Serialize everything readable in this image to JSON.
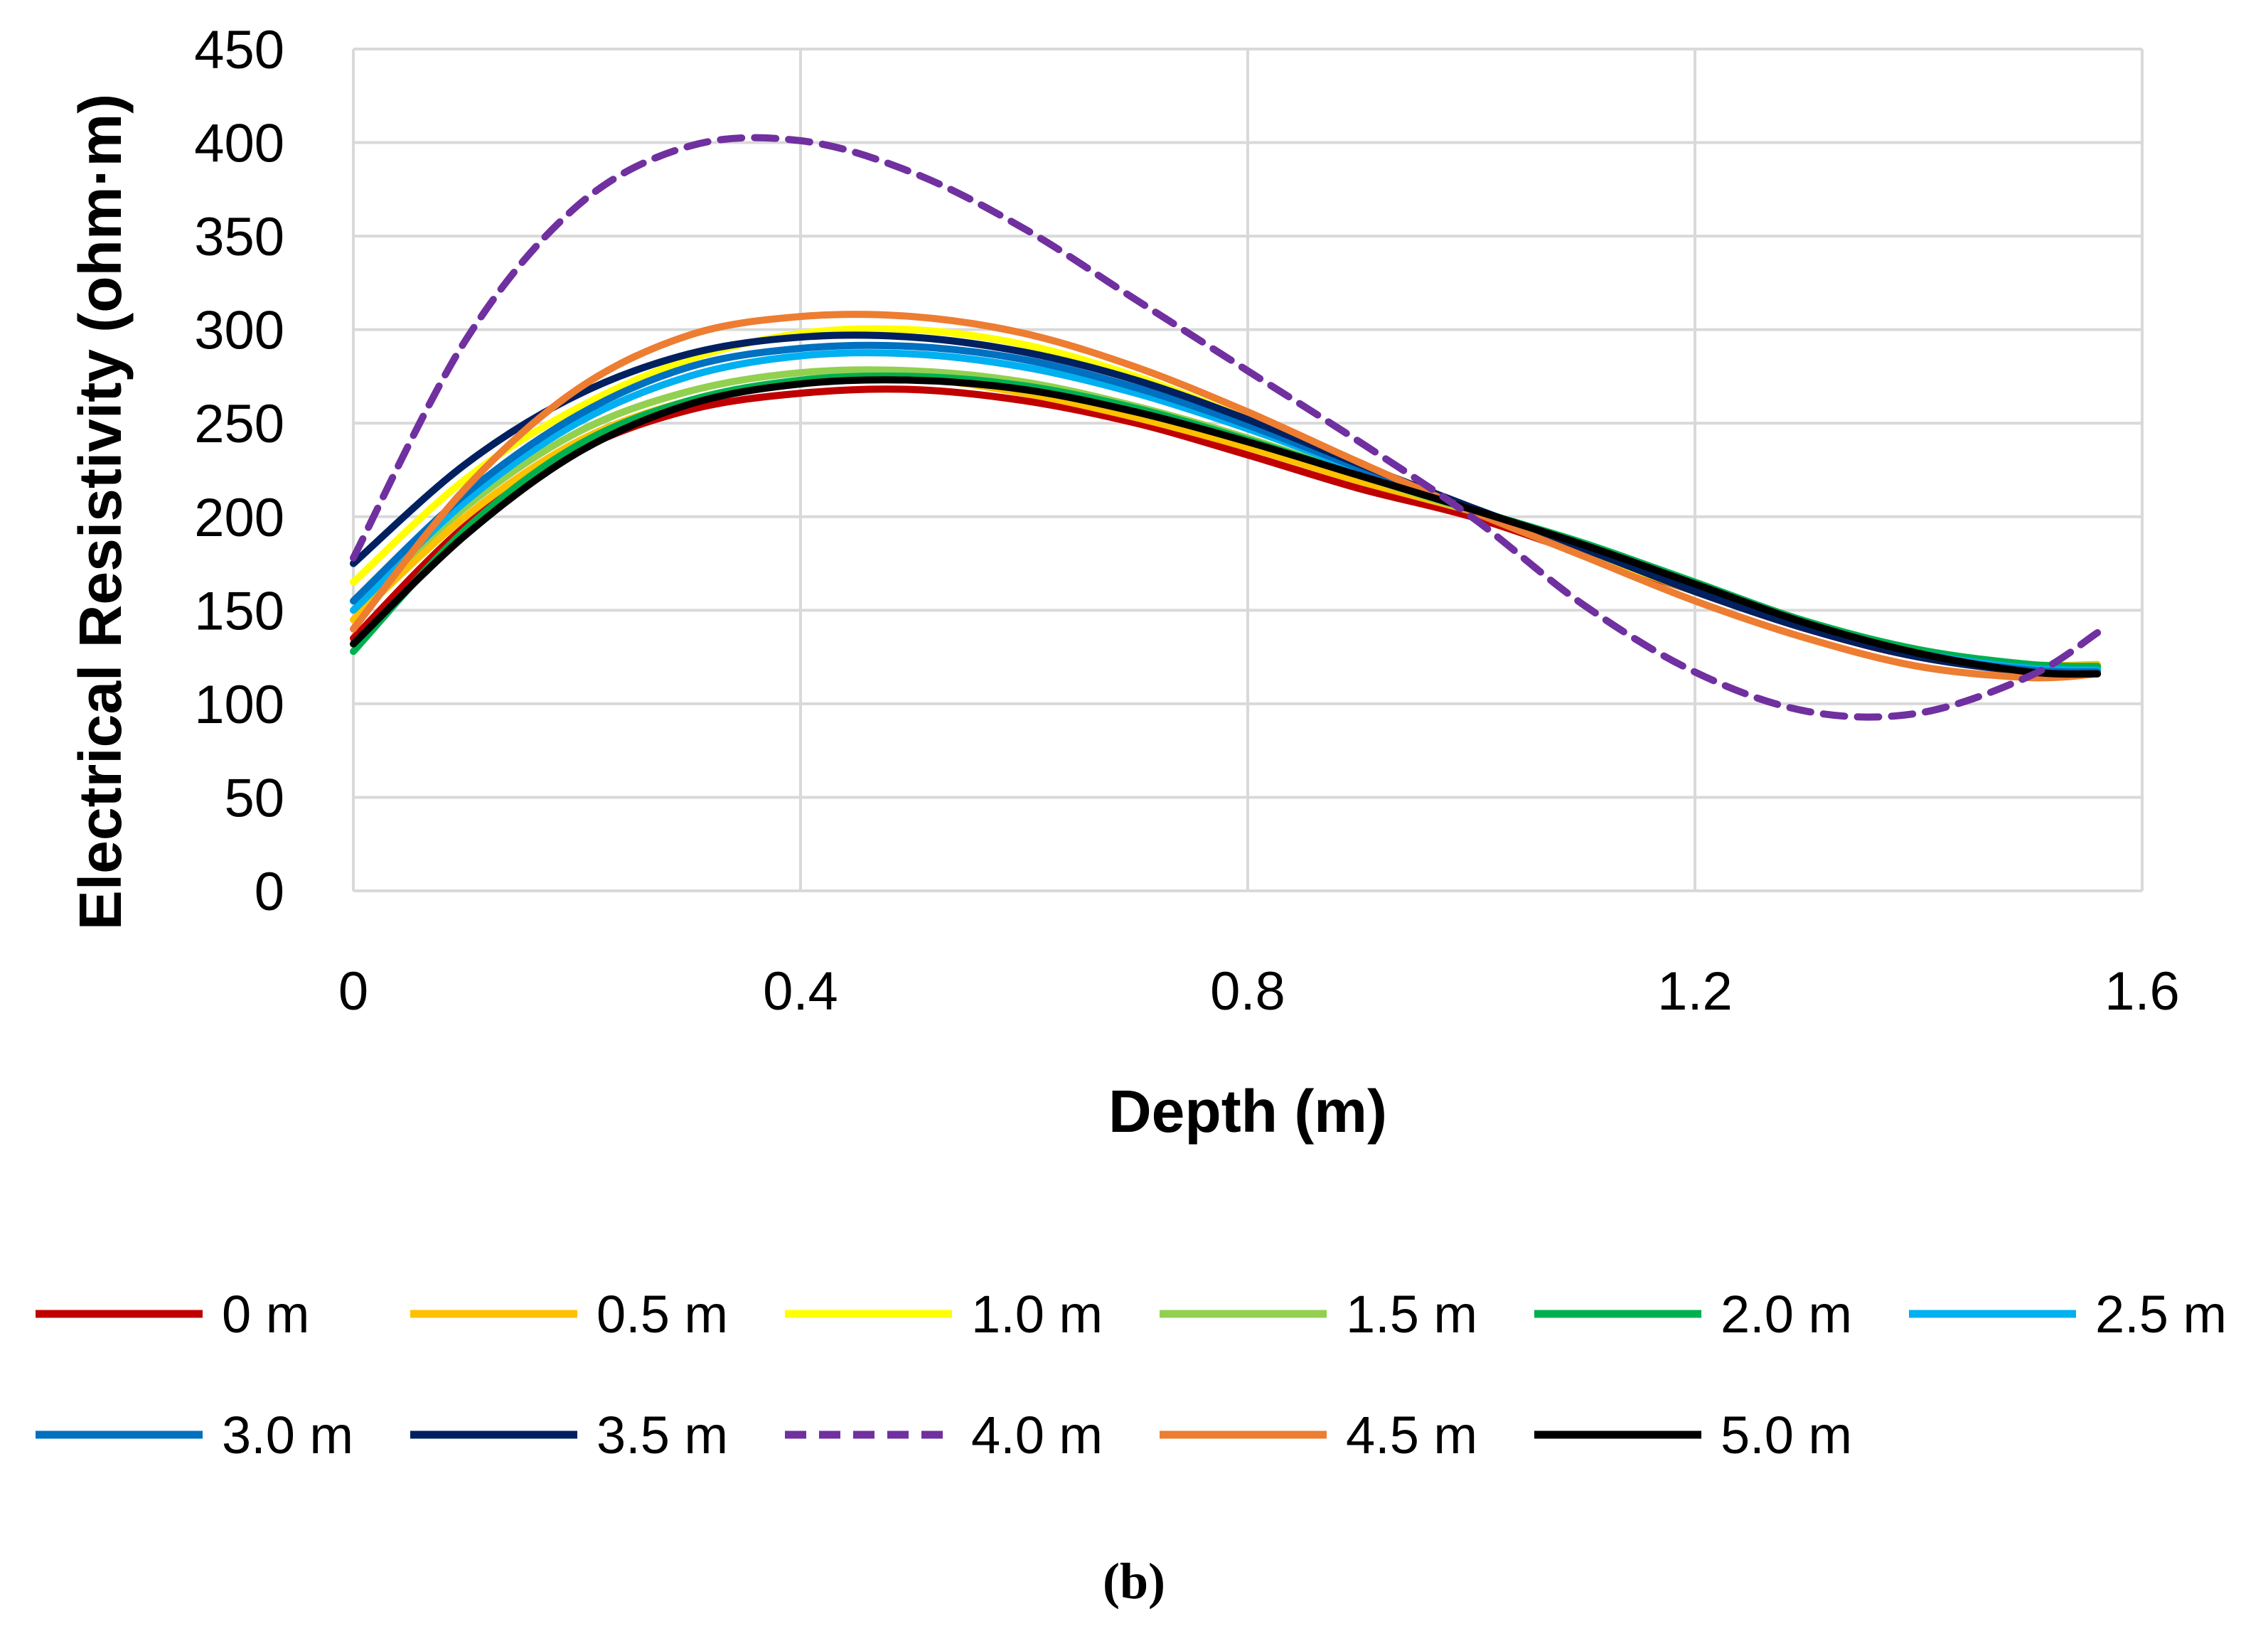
{
  "chart_data": {
    "type": "line",
    "title": "",
    "xlabel": "Depth (m)",
    "ylabel": "Electrical Resistivity (ohm·m)",
    "xlim": [
      0,
      1.6
    ],
    "ylim": [
      0,
      450
    ],
    "xticks": [
      "0",
      "0.4",
      "0.8",
      "1.2",
      "1.6"
    ],
    "yticks": [
      "0",
      "50",
      "100",
      "150",
      "200",
      "250",
      "300",
      "350",
      "400",
      "450"
    ],
    "grid": true,
    "legend_position": "bottom",
    "caption": "(b)",
    "x": [
      0,
      0.1,
      0.2,
      0.3,
      0.4,
      0.5,
      0.6,
      0.7,
      0.8,
      0.9,
      1.0,
      1.1,
      1.2,
      1.3,
      1.4,
      1.5,
      1.56
    ],
    "series": [
      {
        "name": "0 m",
        "color": "#C00000",
        "dashed": false,
        "values": [
          135,
          195,
          235,
          257,
          266,
          268,
          262,
          250,
          233,
          215,
          200,
          180,
          160,
          140,
          125,
          118,
          119
        ]
      },
      {
        "name": "0.5 m",
        "color": "#FFC000",
        "dashed": false,
        "values": [
          145,
          200,
          240,
          262,
          272,
          274,
          266,
          253,
          237,
          219,
          203,
          185,
          163,
          142,
          128,
          121,
          121
        ]
      },
      {
        "name": "1.0 m",
        "color": "#FFFF00",
        "dashed": false,
        "values": [
          165,
          220,
          258,
          284,
          298,
          300,
          292,
          275,
          252,
          226,
          203,
          182,
          160,
          141,
          127,
          120,
          120
        ]
      },
      {
        "name": "1.5 m",
        "color": "#92D050",
        "dashed": false,
        "values": [
          150,
          205,
          245,
          267,
          277,
          278,
          272,
          259,
          242,
          222,
          203,
          185,
          164,
          143,
          128,
          120,
          119
        ]
      },
      {
        "name": "2.0 m",
        "color": "#00B050",
        "dashed": false,
        "values": [
          128,
          193,
          238,
          262,
          273,
          275,
          270,
          258,
          241,
          222,
          204,
          186,
          165,
          144,
          129,
          121,
          120
        ]
      },
      {
        "name": "2.5 m",
        "color": "#00B0F0",
        "dashed": false,
        "values": [
          150,
          208,
          250,
          275,
          286,
          287,
          280,
          266,
          247,
          225,
          204,
          184,
          162,
          142,
          127,
          119,
          118
        ]
      },
      {
        "name": "3.0 m",
        "color": "#0070C0",
        "dashed": false,
        "values": [
          155,
          212,
          254,
          280,
          290,
          291,
          284,
          269,
          249,
          226,
          204,
          183,
          161,
          141,
          126,
          118,
          117
        ]
      },
      {
        "name": "3.5 m",
        "color": "#002060",
        "dashed": false,
        "values": [
          175,
          228,
          265,
          287,
          296,
          296,
          288,
          273,
          252,
          228,
          205,
          183,
          160,
          140,
          125,
          117,
          116
        ]
      },
      {
        "name": "4.0 m",
        "color": "#7030A0",
        "dashed": true,
        "values": [
          178,
          294,
          366,
          398,
          401,
          384,
          354,
          316,
          278,
          240,
          200,
          153,
          117,
          96,
          95,
          115,
          138
        ]
      },
      {
        "name": "4.5 m",
        "color": "#ED7D31",
        "dashed": false,
        "values": [
          140,
          215,
          268,
          297,
          307,
          307,
          298,
          280,
          256,
          229,
          203,
          179,
          155,
          135,
          120,
          114,
          116
        ]
      },
      {
        "name": "5.0 m",
        "color": "#000000",
        "dashed": false,
        "values": [
          132,
          190,
          234,
          260,
          271,
          273,
          268,
          256,
          240,
          222,
          204,
          185,
          164,
          143,
          127,
          117,
          116
        ]
      }
    ]
  }
}
